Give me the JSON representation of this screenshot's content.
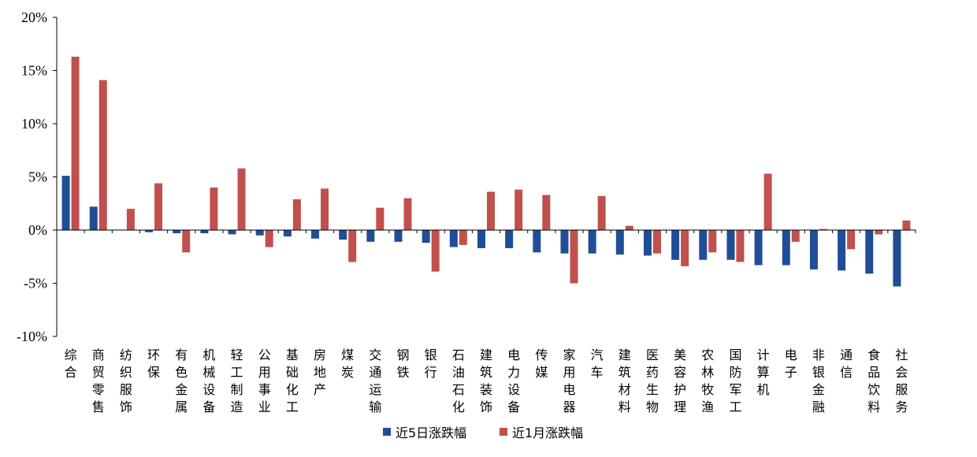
{
  "chart_data": {
    "type": "bar",
    "categories": [
      "综合",
      "商贸零售",
      "纺织服饰",
      "环保",
      "有色金属",
      "机械设备",
      "轻工制造",
      "公用事业",
      "基础化工",
      "房地产",
      "煤炭",
      "交通运输",
      "钢铁",
      "银行",
      "石油石化",
      "建筑装饰",
      "电力设备",
      "传媒",
      "家用电器",
      "汽车",
      "建筑材料",
      "医药生物",
      "美容护理",
      "农林牧渔",
      "国防军工",
      "计算机",
      "电子",
      "非银金融",
      "通信",
      "食品饮料",
      "社会服务"
    ],
    "series": [
      {
        "name": "近5日涨跌幅",
        "color": "#1F4E96",
        "values": [
          5.1,
          2.2,
          0.0,
          -0.2,
          -0.3,
          -0.3,
          -0.4,
          -0.5,
          -0.6,
          -0.8,
          -0.9,
          -1.1,
          -1.1,
          -1.2,
          -1.6,
          -1.7,
          -1.7,
          -2.1,
          -2.2,
          -2.2,
          -2.3,
          -2.4,
          -2.8,
          -2.8,
          -2.8,
          -3.3,
          -3.3,
          -3.7,
          -3.8,
          -4.1,
          -5.3
        ]
      },
      {
        "name": "近1月涨跌幅",
        "color": "#C0504D",
        "values": [
          16.3,
          14.1,
          2.0,
          4.4,
          -2.1,
          4.0,
          5.8,
          -1.6,
          2.9,
          3.9,
          -3.0,
          2.1,
          3.0,
          -3.9,
          -1.4,
          3.6,
          3.8,
          3.3,
          -5.0,
          3.2,
          0.4,
          -2.2,
          -3.4,
          -2.1,
          -3.0,
          5.3,
          -1.1,
          0.1,
          -1.8,
          -0.4,
          0.9
        ]
      }
    ],
    "ylim": [
      -10,
      20
    ],
    "yticks": [
      -10,
      -5,
      0,
      5,
      10,
      15,
      20
    ],
    "ytick_labels": [
      "-10%",
      "-5%",
      "0%",
      "5%",
      "10%",
      "15%",
      "20%"
    ],
    "grid": false,
    "legend": "bottom-center"
  }
}
